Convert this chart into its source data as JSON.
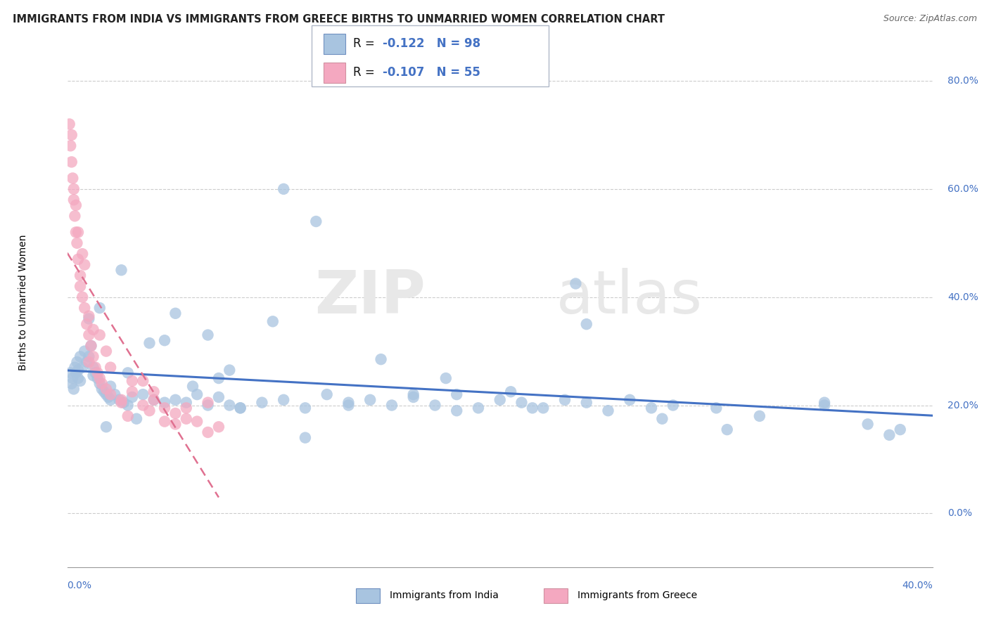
{
  "title": "IMMIGRANTS FROM INDIA VS IMMIGRANTS FROM GREECE BIRTHS TO UNMARRIED WOMEN CORRELATION CHART",
  "source": "Source: ZipAtlas.com",
  "ylabel": "Births to Unmarried Women",
  "ytick_vals": [
    0,
    20,
    40,
    60,
    80
  ],
  "xrange": [
    0,
    40
  ],
  "ymin": -10,
  "ymax": 88,
  "legend_india_r": -0.122,
  "legend_india_n": 98,
  "legend_greece_r": -0.107,
  "legend_greece_n": 55,
  "india_color": "#a8c4e0",
  "greece_color": "#f4a8c0",
  "india_line_color": "#4472c4",
  "greece_line_color": "#e07090",
  "india_x": [
    0.15,
    0.2,
    0.25,
    0.3,
    0.35,
    0.4,
    0.45,
    0.5,
    0.6,
    0.7,
    0.8,
    0.9,
    1.0,
    1.1,
    1.2,
    1.3,
    1.4,
    1.5,
    1.6,
    1.7,
    1.8,
    1.9,
    2.0,
    2.2,
    2.4,
    2.6,
    2.8,
    3.0,
    3.5,
    4.0,
    4.5,
    5.0,
    5.5,
    6.0,
    6.5,
    7.0,
    7.5,
    8.0,
    9.0,
    10.0,
    11.0,
    12.0,
    13.0,
    14.0,
    15.0,
    16.0,
    17.0,
    18.0,
    19.0,
    20.0,
    21.0,
    22.0,
    23.0,
    24.0,
    25.0,
    26.0,
    27.0,
    28.0,
    30.0,
    32.0,
    35.0,
    37.0,
    38.5,
    0.5,
    1.0,
    1.5,
    2.5,
    3.2,
    4.5,
    5.8,
    7.5,
    9.5,
    11.5,
    14.5,
    17.5,
    20.5,
    23.5,
    1.8,
    3.8,
    6.5,
    10.0,
    0.6,
    1.2,
    2.0,
    5.0,
    8.0,
    13.0,
    18.0,
    24.0,
    30.5,
    38.0,
    2.8,
    7.0,
    16.0,
    21.5,
    27.5,
    35.0,
    11.0
  ],
  "india_y": [
    26.0,
    24.0,
    25.0,
    23.0,
    27.0,
    26.0,
    28.0,
    25.0,
    29.0,
    27.0,
    30.0,
    28.0,
    29.0,
    31.0,
    27.0,
    26.0,
    25.0,
    24.0,
    23.0,
    22.5,
    22.0,
    21.5,
    21.0,
    22.0,
    21.0,
    20.5,
    20.0,
    21.5,
    22.0,
    21.0,
    20.5,
    21.0,
    20.5,
    22.0,
    20.0,
    21.5,
    20.0,
    19.5,
    20.5,
    21.0,
    19.5,
    22.0,
    20.5,
    21.0,
    20.0,
    21.5,
    20.0,
    22.0,
    19.5,
    21.0,
    20.5,
    19.5,
    21.0,
    20.5,
    19.0,
    21.0,
    19.5,
    20.0,
    19.5,
    18.0,
    20.5,
    16.5,
    15.5,
    26.5,
    36.0,
    38.0,
    45.0,
    17.5,
    32.0,
    23.5,
    26.5,
    35.5,
    54.0,
    28.5,
    25.0,
    22.5,
    42.5,
    16.0,
    31.5,
    33.0,
    60.0,
    24.5,
    25.5,
    23.5,
    37.0,
    19.5,
    20.0,
    19.0,
    35.0,
    15.5,
    14.5,
    26.0,
    25.0,
    22.0,
    19.5,
    17.5,
    20.0,
    14.0
  ],
  "greece_x": [
    0.1,
    0.15,
    0.2,
    0.25,
    0.3,
    0.35,
    0.4,
    0.45,
    0.5,
    0.6,
    0.7,
    0.8,
    0.9,
    1.0,
    1.1,
    1.2,
    1.3,
    1.4,
    1.5,
    1.6,
    1.8,
    2.0,
    2.5,
    3.0,
    3.5,
    4.0,
    4.5,
    5.0,
    5.5,
    6.0,
    6.5,
    7.0,
    0.3,
    0.5,
    0.8,
    1.0,
    1.5,
    2.0,
    3.0,
    4.0,
    0.2,
    0.4,
    0.7,
    1.2,
    2.5,
    3.8,
    5.5,
    0.6,
    1.8,
    2.8,
    4.5,
    6.5,
    1.0,
    3.5,
    5.0
  ],
  "greece_y": [
    72.0,
    68.0,
    65.0,
    62.0,
    58.0,
    55.0,
    52.0,
    50.0,
    47.0,
    44.0,
    40.0,
    38.0,
    35.0,
    33.0,
    31.0,
    29.0,
    27.0,
    26.0,
    25.0,
    24.0,
    23.0,
    22.0,
    20.5,
    22.5,
    20.0,
    21.0,
    19.5,
    18.5,
    19.5,
    17.0,
    20.5,
    16.0,
    60.0,
    52.0,
    46.0,
    36.5,
    33.0,
    27.0,
    24.5,
    22.5,
    70.0,
    57.0,
    48.0,
    34.0,
    21.0,
    19.0,
    17.5,
    42.0,
    30.0,
    18.0,
    17.0,
    15.0,
    28.0,
    24.5,
    16.5
  ]
}
